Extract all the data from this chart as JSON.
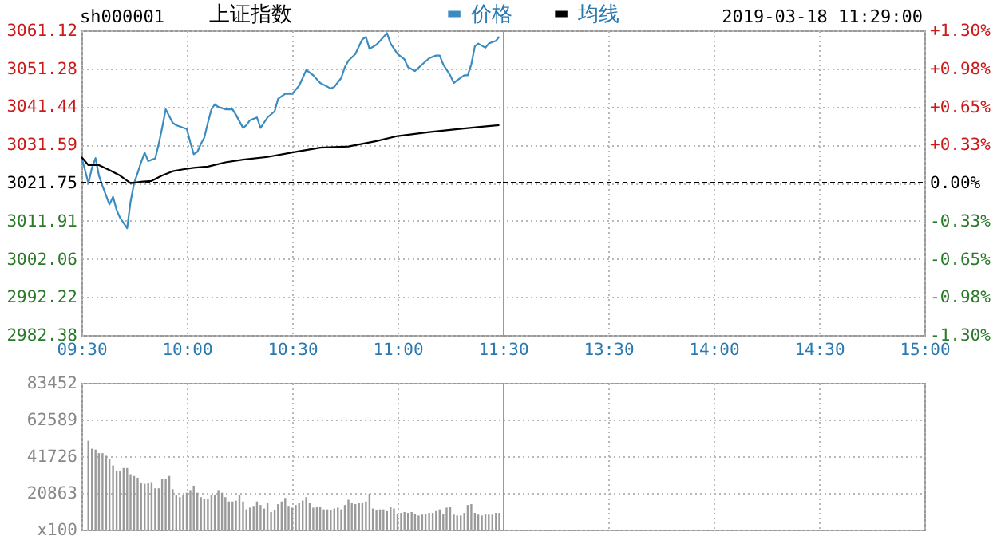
{
  "chart_data": [
    {
      "type": "line",
      "title": "上证指数",
      "annotations": [
        "sh000001"
      ],
      "legend": "top",
      "grid": true,
      "xlim": [
        9.5,
        11.5
      ],
      "xticks": [
        {
          "value": 9.5,
          "label": "09:30"
        },
        {
          "value": 10,
          "label": "10:00"
        },
        {
          "value": 10.5,
          "label": "10:30"
        },
        {
          "value": 11,
          "label": "11:00"
        },
        {
          "value": 11.5,
          "label": "11:30"
        }
      ],
      "ylim": [
        2982.38,
        3061.12
      ],
      "yticks": [
        2982.38,
        2992.22,
        3002.06,
        3011.91,
        3021.75,
        3031.59,
        3041.44,
        3051.28,
        3061.12
      ],
      "ref_lines": [
        {
          "axis": "y",
          "value": 3021.75,
          "color": "#000000",
          "line_style": "dashed"
        }
      ],
      "series": [
        {
          "name": "价格",
          "color": "#3a8cc0",
          "x": [
            9.5,
            9.517,
            9.533,
            9.55,
            9.567,
            9.583,
            9.6,
            9.633,
            9.65,
            9.667,
            9.683,
            9.717,
            9.733,
            9.75,
            9.767,
            9.783,
            9.8,
            9.817,
            9.833,
            9.85,
            9.867,
            9.883,
            9.9,
            9.933,
            9.95,
            10.0,
            10.017,
            10.033,
            10.05,
            10.067,
            10.083,
            10.1,
            10.117,
            10.133,
            10.15,
            10.183,
            10.217,
            10.233,
            10.267,
            10.283,
            10.3,
            10.333,
            10.35,
            10.383,
            10.417,
            10.433,
            10.467,
            10.5,
            10.533,
            10.55,
            10.567,
            10.6,
            10.633,
            10.683,
            10.7,
            10.733,
            10.75,
            10.767,
            10.8,
            10.817,
            10.833,
            10.85,
            10.867,
            10.9,
            10.917,
            10.95,
            10.967,
            11.0,
            11.033,
            11.05,
            11.083,
            11.117,
            11.15,
            11.183,
            11.2,
            11.217,
            11.25,
            11.267,
            11.283,
            11.317,
            11.333,
            11.35,
            11.367,
            11.383,
            11.417,
            11.433,
            11.45,
            11.467,
            11.483
          ],
          "values": [
            3028.4,
            3025.0,
            3021.6,
            3025.6,
            3028.1,
            3023.6,
            3020.9,
            3016.1,
            3018.1,
            3014.7,
            3012.7,
            3010.0,
            3016.8,
            3021.6,
            3024.3,
            3027.0,
            3029.5,
            3027.3,
            3027.7,
            3028.0,
            3031.8,
            3035.9,
            3040.7,
            3037.2,
            3036.6,
            3035.6,
            3032.1,
            3029.1,
            3029.7,
            3031.8,
            3033.4,
            3037.2,
            3040.7,
            3042.0,
            3041.3,
            3040.7,
            3040.7,
            3039.3,
            3035.9,
            3036.6,
            3037.9,
            3038.6,
            3035.9,
            3038.6,
            3040.2,
            3043.4,
            3044.7,
            3044.7,
            3046.8,
            3048.8,
            3050.9,
            3049.5,
            3047.5,
            3046.1,
            3046.5,
            3048.8,
            3051.6,
            3053.3,
            3055.0,
            3057.0,
            3058.8,
            3059.4,
            3056.3,
            3057.4,
            3058.4,
            3060.4,
            3057.7,
            3055.0,
            3053.6,
            3051.6,
            3050.6,
            3052.3,
            3053.9,
            3054.6,
            3054.6,
            3052.3,
            3049.5,
            3047.5,
            3048.2,
            3049.5,
            3049.5,
            3052.3,
            3057.0,
            3057.7,
            3056.6,
            3057.7,
            3058.1,
            3058.4,
            3059.5
          ]
        },
        {
          "name": "均线",
          "color": "#000000",
          "x": [
            9.5,
            9.533,
            9.583,
            9.633,
            9.683,
            9.733,
            9.783,
            9.833,
            9.883,
            9.933,
            9.983,
            10.033,
            10.1,
            10.183,
            10.267,
            10.383,
            10.517,
            10.633,
            10.767,
            10.9,
            11.0,
            11.15,
            11.267,
            11.4,
            11.483
          ],
          "values": [
            3028.4,
            3026.3,
            3026.3,
            3025.0,
            3023.6,
            3021.6,
            3022.0,
            3022.2,
            3023.6,
            3024.7,
            3025.2,
            3025.6,
            3025.9,
            3027.0,
            3027.7,
            3028.4,
            3029.7,
            3030.8,
            3031.1,
            3032.5,
            3033.8,
            3034.8,
            3035.5,
            3036.2,
            3036.6
          ]
        }
      ]
    },
    {
      "type": "line",
      "annotations": [
        "2019-03-18 11:29:00"
      ],
      "grid": true,
      "xlim": [
        13,
        15
      ],
      "xticks": [
        {
          "value": 13.5,
          "label": "13:30"
        },
        {
          "value": 14,
          "label": "14:00"
        },
        {
          "value": 14.5,
          "label": "14:30"
        },
        {
          "value": 15,
          "label": "15:00"
        }
      ],
      "y2lim": [
        -1.3,
        1.3
      ],
      "y2ticks": [
        {
          "value": 1.3,
          "label": "+1.30%"
        },
        {
          "value": 0.975,
          "label": "+0.98%"
        },
        {
          "value": 0.65,
          "label": "+0.65%"
        },
        {
          "value": 0.325,
          "label": "+0.33%"
        },
        {
          "value": 0,
          "label": "0.00%"
        },
        {
          "value": -0.325,
          "label": "-0.33%"
        },
        {
          "value": -0.65,
          "label": "-0.65%"
        },
        {
          "value": -0.975,
          "label": "-0.98%"
        },
        {
          "value": -1.3,
          "label": "-1.30%"
        }
      ],
      "ref_lines": [
        {
          "axis": "y2",
          "value": 0,
          "color": "#000000",
          "line_style": "dashed"
        }
      ]
    },
    {
      "type": "bar",
      "grid": true,
      "tick_labels": "y",
      "color": "#9a9a9a",
      "xlim": [
        9.5,
        11.5
      ],
      "xticks": [
        {
          "value": 9.5,
          "label": null
        },
        {
          "value": 10,
          "label": null
        },
        {
          "value": 10.5,
          "label": null
        },
        {
          "value": 11,
          "label": null
        },
        {
          "value": 11.5,
          "label": null
        }
      ],
      "ylim": [
        0,
        83452
      ],
      "yticks": [
        {
          "value": 0,
          "label": "x100"
        },
        20863,
        41726,
        62589,
        83452
      ],
      "x": [
        9.533,
        9.55,
        9.567,
        9.583,
        9.6,
        9.617,
        9.633,
        9.65,
        9.667,
        9.683,
        9.7,
        9.717,
        9.733,
        9.75,
        9.767,
        9.783,
        9.8,
        9.817,
        9.833,
        9.85,
        9.867,
        9.883,
        9.9,
        9.917,
        9.933,
        9.95,
        9.967,
        9.983,
        10.0,
        10.017,
        10.033,
        10.05,
        10.067,
        10.083,
        10.1,
        10.117,
        10.133,
        10.15,
        10.167,
        10.183,
        10.2,
        10.217,
        10.233,
        10.25,
        10.267,
        10.283,
        10.3,
        10.317,
        10.333,
        10.35,
        10.367,
        10.383,
        10.4,
        10.417,
        10.433,
        10.45,
        10.467,
        10.483,
        10.5,
        10.517,
        10.533,
        10.55,
        10.567,
        10.583,
        10.6,
        10.617,
        10.633,
        10.65,
        10.667,
        10.683,
        10.7,
        10.717,
        10.733,
        10.75,
        10.767,
        10.783,
        10.8,
        10.817,
        10.833,
        10.85,
        10.867,
        10.883,
        10.9,
        10.917,
        10.933,
        10.95,
        10.967,
        10.983,
        11.0,
        11.017,
        11.033,
        11.05,
        11.067,
        11.083,
        11.1,
        11.117,
        11.133,
        11.15,
        11.167,
        11.183,
        11.2,
        11.217,
        11.233,
        11.25,
        11.267,
        11.283,
        11.3,
        11.317,
        11.333,
        11.35,
        11.367,
        11.383,
        11.4,
        11.417,
        11.433,
        11.45,
        11.467,
        11.483
      ],
      "values": [
        50500,
        46000,
        45500,
        43500,
        43500,
        42000,
        40000,
        36500,
        33500,
        33500,
        35000,
        35000,
        31500,
        30500,
        29500,
        26500,
        26000,
        26500,
        27000,
        23500,
        23500,
        29000,
        29000,
        30500,
        23000,
        19500,
        18500,
        19500,
        21000,
        22500,
        25000,
        21000,
        18500,
        17500,
        17500,
        19500,
        20000,
        22500,
        21000,
        18500,
        16000,
        16000,
        16500,
        20000,
        16000,
        11500,
        12500,
        13500,
        16000,
        14000,
        12000,
        15000,
        10000,
        11000,
        14500,
        16000,
        18000,
        13500,
        12500,
        14000,
        15000,
        16500,
        18500,
        15000,
        12500,
        13000,
        13000,
        11500,
        11500,
        11000,
        12000,
        12500,
        11500,
        14000,
        17000,
        15000,
        14500,
        15000,
        15000,
        16000,
        20500,
        12000,
        11000,
        11500,
        11500,
        10500,
        13000,
        12000,
        9000,
        9500,
        10000,
        9500,
        10000,
        9000,
        8000,
        8500,
        9000,
        9500,
        9500,
        10500,
        11500,
        9000,
        12500,
        13000,
        8500,
        8000,
        8000,
        9500,
        14000,
        14500,
        9500,
        8500,
        8000,
        9000,
        8500,
        8500,
        9500,
        9500
      ]
    },
    {
      "type": "bar",
      "grid": true,
      "tick_labels": false,
      "color": "#9a9a9a",
      "xlim": [
        13,
        15
      ],
      "xticks": [
        {
          "value": 13.5,
          "label": null
        },
        {
          "value": 14,
          "label": null
        },
        {
          "value": 14.5,
          "label": null
        },
        {
          "value": 15,
          "label": null
        }
      ],
      "ylim": [
        0,
        83452
      ],
      "yticks": [
        {
          "value": 0,
          "label": null
        },
        {
          "value": 20863,
          "label": null
        },
        {
          "value": 41726,
          "label": null
        },
        {
          "value": 62589,
          "label": null
        },
        {
          "value": 83452,
          "label": null
        }
      ]
    }
  ]
}
